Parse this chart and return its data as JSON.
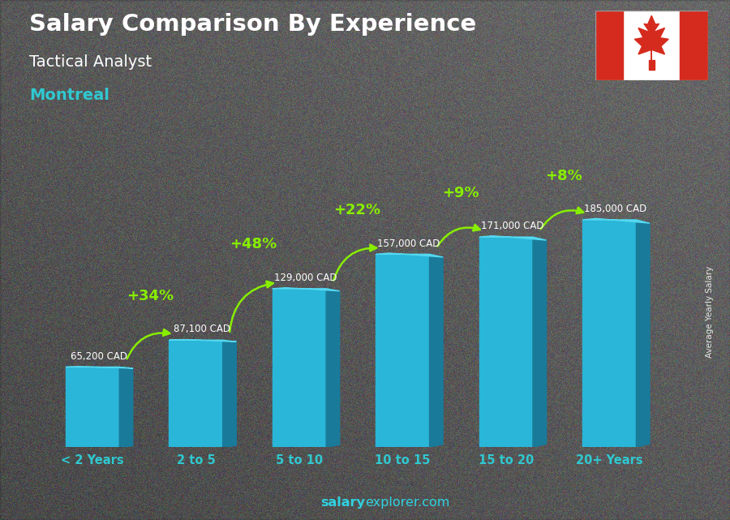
{
  "title_line1": "Salary Comparison By Experience",
  "title_line2": "Tactical Analyst",
  "title_line3": "Montreal",
  "categories": [
    "< 2 Years",
    "2 to 5",
    "5 to 10",
    "10 to 15",
    "15 to 20",
    "20+ Years"
  ],
  "values": [
    65200,
    87100,
    129000,
    157000,
    171000,
    185000
  ],
  "value_labels": [
    "65,200 CAD",
    "87,100 CAD",
    "129,000 CAD",
    "157,000 CAD",
    "171,000 CAD",
    "185,000 CAD"
  ],
  "pct_labels": [
    "+34%",
    "+48%",
    "+22%",
    "+9%",
    "+8%"
  ],
  "bar_color_face": "#29b6d8",
  "bar_color_side": "#1a7a9a",
  "bar_color_top": "#55d8f0",
  "bg_color_top": "#7a7a7a",
  "bg_color_bottom": "#4a4a4a",
  "title_color": "#ffffff",
  "subtitle_color": "#ffffff",
  "city_color": "#30c8d0",
  "label_color": "#ffffff",
  "pct_color": "#88ee00",
  "arrow_color": "#88ee00",
  "xtick_color": "#30c8d0",
  "watermark_bold": "salary",
  "watermark_normal": "explorer.com",
  "ylabel": "Average Yearly Salary",
  "ylim_max": 220000,
  "bar_width": 0.52
}
